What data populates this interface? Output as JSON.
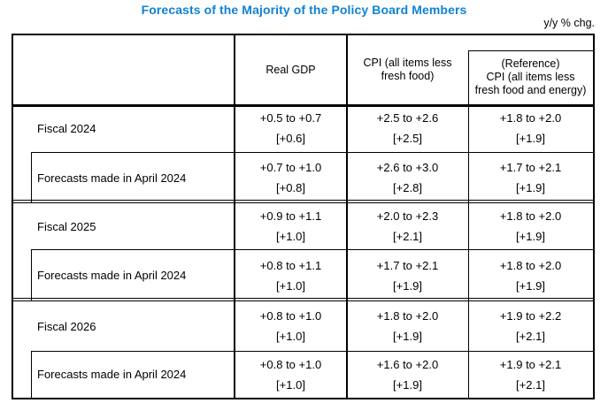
{
  "page": {
    "title": "Forecasts of the Majority of the Policy Board Members",
    "unit_note": "y/y % chg.",
    "title_color": "#1182d2",
    "border_color": "#000000"
  },
  "table": {
    "header": {
      "gdp": "Real GDP",
      "cpi_line1": "CPI (all items less",
      "cpi_line2": "fresh food)",
      "ref_line1": "(Reference)",
      "ref_line2": "CPI (all items less",
      "ref_line3": "fresh food and energy)"
    },
    "rows": [
      {
        "label": "Fiscal 2024",
        "indented": false,
        "gdp_range": "+0.5 to +0.7",
        "gdp_median": "[+0.6]",
        "cpi_range": "+2.5 to +2.6",
        "cpi_median": "[+2.5]",
        "ref_range": "+1.8 to +2.0",
        "ref_median": "[+1.9]"
      },
      {
        "label": "Forecasts made in April 2024",
        "indented": true,
        "gdp_range": "+0.7 to +1.0",
        "gdp_median": "[+0.8]",
        "cpi_range": "+2.6 to +3.0",
        "cpi_median": "[+2.8]",
        "ref_range": "+1.7 to +2.1",
        "ref_median": "[+1.9]"
      },
      {
        "label": "Fiscal 2025",
        "indented": false,
        "gdp_range": "+0.9 to +1.1",
        "gdp_median": "[+1.0]",
        "cpi_range": "+2.0 to +2.3",
        "cpi_median": "[+2.1]",
        "ref_range": "+1.8 to +2.0",
        "ref_median": "[+1.9]"
      },
      {
        "label": "Forecasts made in April 2024",
        "indented": true,
        "gdp_range": "+0.8 to +1.1",
        "gdp_median": "[+1.0]",
        "cpi_range": "+1.7 to +2.1",
        "cpi_median": "[+1.9]",
        "ref_range": "+1.8 to +2.0",
        "ref_median": "[+1.9]"
      },
      {
        "label": "Fiscal 2026",
        "indented": false,
        "gdp_range": "+0.8 to +1.0",
        "gdp_median": "[+1.0]",
        "cpi_range": "+1.8 to +2.0",
        "cpi_median": "[+1.9]",
        "ref_range": "+1.9 to +2.2",
        "ref_median": "[+2.1]"
      },
      {
        "label": "Forecasts made in April 2024",
        "indented": true,
        "gdp_range": "+0.8 to +1.0",
        "gdp_median": "[+1.0]",
        "cpi_range": "+1.6 to +2.0",
        "cpi_median": "[+1.9]",
        "ref_range": "+1.9 to +2.1",
        "ref_median": "[+2.1]"
      }
    ]
  }
}
